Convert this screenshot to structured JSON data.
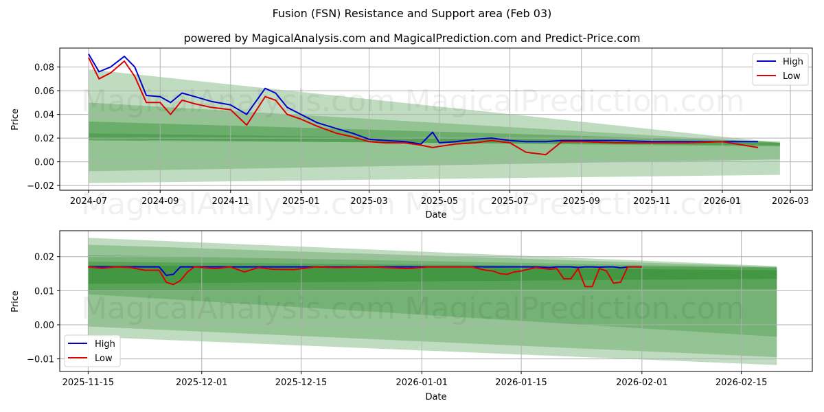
{
  "title": "Fusion (FSN) Resistance and Support area (Feb 03)",
  "subtitle": "powered by MagicalAnalysis.com and MagicalPrediction.com and Predict-Price.com",
  "watermarks": [
    "MagicalAnalysis.com",
    "MagicalPrediction.com"
  ],
  "colors": {
    "high": "#0000cc",
    "low": "#dd0000",
    "band": "#2e8b2e",
    "grid": "#b0b0b0"
  },
  "legend": {
    "high_label": "High",
    "low_label": "Low"
  },
  "chart_data": [
    {
      "type": "line",
      "panel": "top",
      "title": "",
      "xlabel": "Date",
      "ylabel": "Price",
      "ylim": [
        -0.024,
        0.096
      ],
      "xlim": [
        "2024-06-06",
        "2026-03-20"
      ],
      "grid": true,
      "legend_position": "upper right",
      "x_ticks": [
        "2024-07",
        "2024-09",
        "2024-11",
        "2025-01",
        "2025-03",
        "2025-05",
        "2025-07",
        "2025-09",
        "2025-11",
        "2026-01",
        "2026-03"
      ],
      "y_ticks": [
        "−0.02",
        "0.00",
        "0.02",
        "0.04",
        "0.06",
        "0.08"
      ],
      "x": [
        "2024-07-01",
        "2024-07-10",
        "2024-07-20",
        "2024-08-01",
        "2024-08-10",
        "2024-08-20",
        "2024-09-01",
        "2024-09-10",
        "2024-09-20",
        "2024-10-01",
        "2024-10-15",
        "2024-11-01",
        "2024-11-15",
        "2024-12-01",
        "2024-12-10",
        "2024-12-20",
        "2025-01-01",
        "2025-01-15",
        "2025-02-01",
        "2025-02-15",
        "2025-03-01",
        "2025-03-15",
        "2025-04-01",
        "2025-04-15",
        "2025-04-25",
        "2025-05-01",
        "2025-05-15",
        "2025-06-01",
        "2025-06-15",
        "2025-07-01",
        "2025-07-15",
        "2025-08-01",
        "2025-08-15",
        "2025-09-01",
        "2025-10-01",
        "2025-11-01",
        "2025-12-01",
        "2026-01-01",
        "2026-02-01"
      ],
      "series": [
        {
          "name": "High",
          "values": [
            0.091,
            0.076,
            0.08,
            0.089,
            0.08,
            0.056,
            0.055,
            0.05,
            0.058,
            0.055,
            0.051,
            0.048,
            0.04,
            0.062,
            0.058,
            0.046,
            0.04,
            0.033,
            0.028,
            0.024,
            0.019,
            0.018,
            0.017,
            0.015,
            0.025,
            0.016,
            0.017,
            0.019,
            0.02,
            0.018,
            0.017,
            0.017,
            0.018,
            0.018,
            0.018,
            0.017,
            0.017,
            0.017,
            0.017
          ]
        },
        {
          "name": "Low",
          "values": [
            0.088,
            0.07,
            0.075,
            0.085,
            0.072,
            0.05,
            0.05,
            0.04,
            0.052,
            0.049,
            0.046,
            0.044,
            0.031,
            0.055,
            0.052,
            0.04,
            0.036,
            0.03,
            0.024,
            0.021,
            0.017,
            0.016,
            0.016,
            0.014,
            0.012,
            0.013,
            0.015,
            0.016,
            0.018,
            0.016,
            0.008,
            0.006,
            0.017,
            0.017,
            0.016,
            0.016,
            0.016,
            0.017,
            0.012
          ]
        }
      ],
      "bands": [
        {
          "start": "2024-07-01",
          "end": "2026-02-20",
          "upper": [
            0.078,
            0.016
          ],
          "lower": [
            -0.018,
            -0.011
          ],
          "opacity": 0.3
        },
        {
          "start": "2024-07-01",
          "end": "2026-02-20",
          "upper": [
            0.05,
            0.016
          ],
          "lower": [
            -0.008,
            0.002
          ],
          "opacity": 0.3
        },
        {
          "start": "2024-07-01",
          "end": "2026-02-20",
          "upper": [
            0.034,
            0.017
          ],
          "lower": [
            0.018,
            0.014
          ],
          "opacity": 0.4
        },
        {
          "start": "2024-07-01",
          "end": "2026-02-20",
          "upper": [
            0.024,
            0.016
          ],
          "lower": [
            0.019,
            0.013
          ],
          "opacity": 0.4
        }
      ]
    },
    {
      "type": "line",
      "panel": "bottom",
      "title": "",
      "xlabel": "Date",
      "ylabel": "Price",
      "ylim": [
        -0.0137,
        0.0276
      ],
      "xlim": [
        "2025-11-11",
        "2026-02-25"
      ],
      "grid": true,
      "legend_position": "lower left",
      "x_ticks": [
        "2025-11-15",
        "2025-12-01",
        "2025-12-15",
        "2026-01-01",
        "2026-01-15",
        "2026-02-01",
        "2026-02-15"
      ],
      "y_ticks": [
        "−0.01",
        "0.00",
        "0.01",
        "0.02"
      ],
      "x": [
        "2025-11-15",
        "2025-11-17",
        "2025-11-19",
        "2025-11-21",
        "2025-11-23",
        "2025-11-25",
        "2025-11-26",
        "2025-11-27",
        "2025-11-28",
        "2025-11-29",
        "2025-11-30",
        "2025-12-03",
        "2025-12-05",
        "2025-12-07",
        "2025-12-09",
        "2025-12-11",
        "2025-12-14",
        "2025-12-17",
        "2025-12-20",
        "2025-12-25",
        "2025-12-30",
        "2026-01-02",
        "2026-01-06",
        "2026-01-08",
        "2026-01-10",
        "2026-01-11",
        "2026-01-12",
        "2026-01-13",
        "2026-01-14",
        "2026-01-15",
        "2026-01-17",
        "2026-01-19",
        "2026-01-20",
        "2026-01-21",
        "2026-01-22",
        "2026-01-23",
        "2026-01-24",
        "2026-01-25",
        "2026-01-26",
        "2026-01-27",
        "2026-01-28",
        "2026-01-29",
        "2026-01-30",
        "2026-01-31",
        "2026-02-01"
      ],
      "series": [
        {
          "name": "High",
          "values": [
            0.017,
            0.017,
            0.017,
            0.017,
            0.017,
            0.017,
            0.0145,
            0.0148,
            0.017,
            0.017,
            0.017,
            0.017,
            0.017,
            0.017,
            0.017,
            0.017,
            0.017,
            0.017,
            0.017,
            0.017,
            0.017,
            0.017,
            0.017,
            0.017,
            0.017,
            0.017,
            0.017,
            0.017,
            0.017,
            0.017,
            0.017,
            0.0168,
            0.017,
            0.017,
            0.017,
            0.0168,
            0.017,
            0.017,
            0.0169,
            0.017,
            0.017,
            0.0167,
            0.017,
            0.017,
            0.017
          ]
        },
        {
          "name": "Low",
          "values": [
            0.017,
            0.0166,
            0.017,
            0.0168,
            0.016,
            0.016,
            0.0125,
            0.0118,
            0.013,
            0.0155,
            0.017,
            0.0165,
            0.017,
            0.0155,
            0.0168,
            0.0163,
            0.0162,
            0.017,
            0.0168,
            0.017,
            0.0165,
            0.017,
            0.017,
            0.017,
            0.016,
            0.0158,
            0.015,
            0.0148,
            0.0155,
            0.0158,
            0.0168,
            0.0163,
            0.0165,
            0.0135,
            0.0135,
            0.0165,
            0.0112,
            0.0112,
            0.0165,
            0.0158,
            0.0122,
            0.0125,
            0.017,
            0.017,
            0.017
          ]
        }
      ],
      "bands": [
        {
          "start": "2025-11-15",
          "end": "2026-02-20",
          "upper": [
            0.0255,
            0.0172
          ],
          "lower": [
            -0.0035,
            -0.0118
          ],
          "opacity": 0.3
        },
        {
          "start": "2025-11-15",
          "end": "2026-02-20",
          "upper": [
            0.0235,
            0.017
          ],
          "lower": [
            -0.0005,
            -0.0095
          ],
          "opacity": 0.3
        },
        {
          "start": "2025-11-15",
          "end": "2026-02-20",
          "upper": [
            0.0205,
            0.0168
          ],
          "lower": [
            0.009,
            -0.0035
          ],
          "opacity": 0.3
        },
        {
          "start": "2025-11-15",
          "end": "2026-02-20",
          "upper": [
            0.0185,
            0.0168
          ],
          "lower": [
            0.01,
            0.0105
          ],
          "opacity": 0.4
        },
        {
          "start": "2025-11-15",
          "end": "2026-02-20",
          "upper": [
            0.0175,
            0.016
          ],
          "lower": [
            0.012,
            0.0135
          ],
          "opacity": 0.5
        }
      ]
    }
  ]
}
